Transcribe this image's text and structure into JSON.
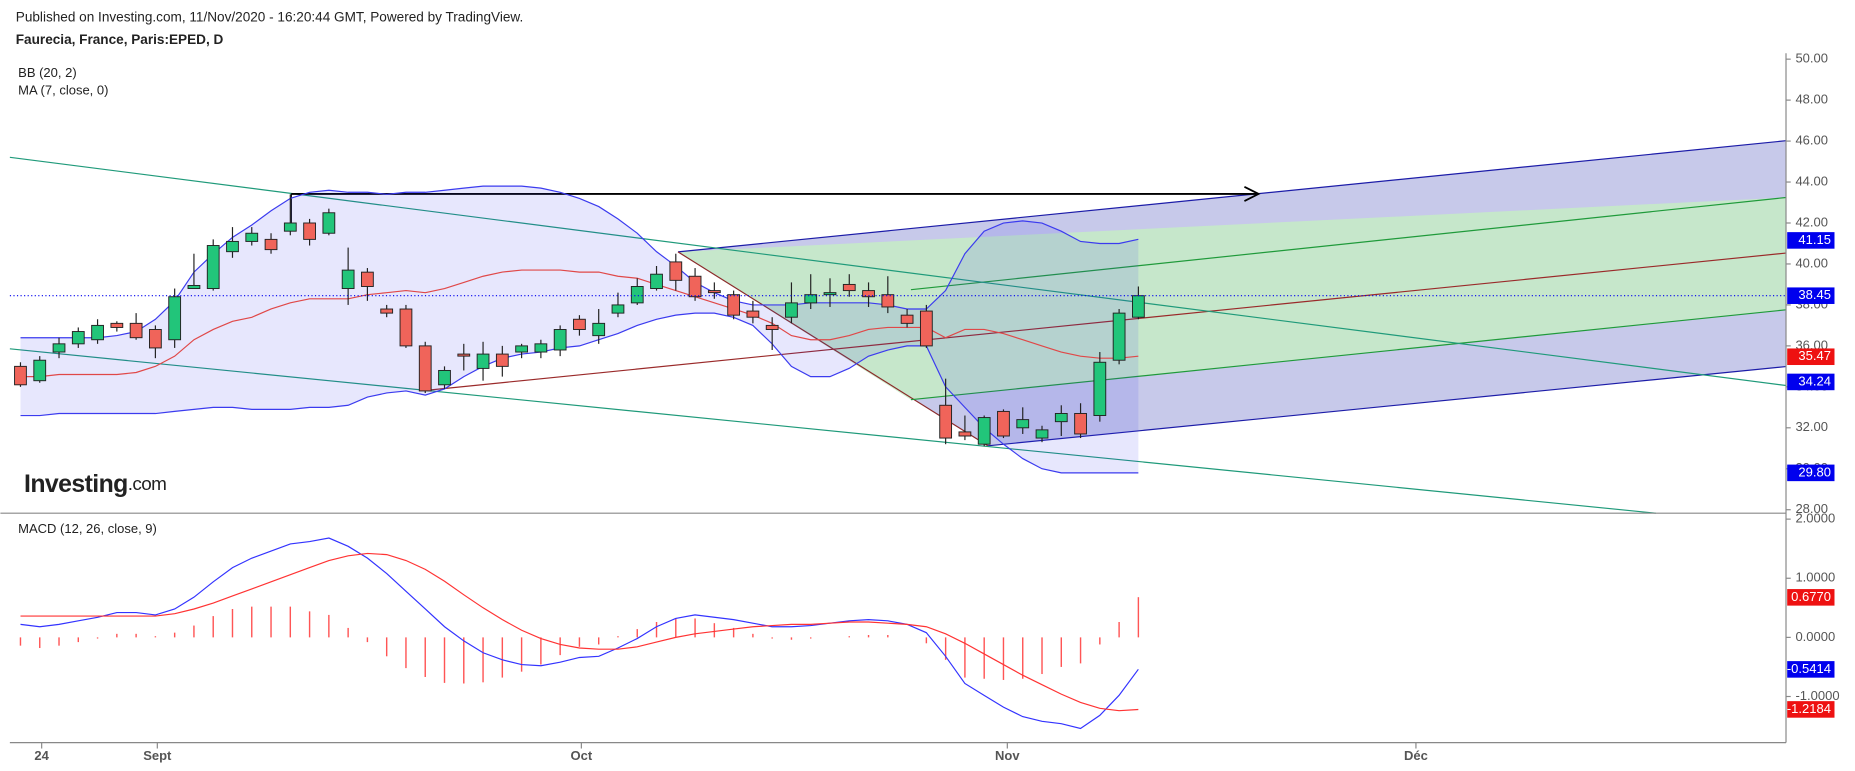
{
  "header": {
    "published": "Published on Investing.com, 11/Nov/2020 - 16:20:44 GMT, Powered by TradingView."
  },
  "watermark": [
    "Investing",
    ".com"
  ],
  "chart_data": [
    {
      "type": "candlestick",
      "title": "Faurecia, France, Paris:EPED, D",
      "xlim": [
        -0.55,
        91.6
      ],
      "xticks": [
        {
          "value": 1.1,
          "label": "24"
        },
        {
          "value": 7.1,
          "label": "Sept"
        },
        {
          "value": 29.1,
          "label": "Oct"
        },
        {
          "value": 51.2,
          "label": "Nov"
        },
        {
          "value": 72.4,
          "label": "Déc"
        }
      ],
      "ylim": [
        27.83,
        50.29
      ],
      "yticks": [
        {
          "value": 50,
          "label": "50.00"
        },
        {
          "value": 48,
          "label": "48.00"
        },
        {
          "value": 46,
          "label": "46.00"
        },
        {
          "value": 44,
          "label": "44.00"
        },
        {
          "value": 42,
          "label": "42.00"
        },
        {
          "value": 40,
          "label": "40.00"
        },
        {
          "value": 38,
          "label": "38.00"
        },
        {
          "value": 36,
          "label": "36.00"
        },
        {
          "value": 34,
          "label": "34.00"
        },
        {
          "value": 32,
          "label": "32.00"
        },
        {
          "value": 30,
          "label": "30.00"
        },
        {
          "value": 28,
          "label": "28.00"
        }
      ],
      "up_color": "#22c57a",
      "down_color": "#f0645a",
      "open": [
        35.0,
        34.3,
        35.7,
        36.1,
        36.3,
        37.1,
        37.1,
        36.8,
        36.3,
        38.8,
        38.8,
        40.6,
        41.1,
        41.2,
        41.6,
        42.0,
        41.5,
        38.8,
        39.6,
        37.8,
        37.8,
        36.0,
        34.1,
        35.6,
        34.9,
        35.6,
        35.7,
        35.7,
        35.8,
        37.3,
        36.5,
        37.6,
        38.1,
        38.8,
        40.1,
        39.4,
        38.7,
        38.5,
        37.7,
        37.0,
        37.4,
        38.1,
        38.5,
        39.0,
        38.7,
        38.5,
        37.5,
        37.7,
        33.1,
        31.8,
        31.2,
        32.8,
        32.0,
        31.5,
        32.3,
        32.7,
        32.6,
        35.3,
        37.4
      ],
      "high": [
        35.2,
        35.5,
        36.4,
        36.9,
        37.3,
        37.2,
        37.6,
        37.0,
        38.8,
        40.5,
        41.2,
        41.8,
        41.8,
        41.5,
        43.4,
        42.2,
        42.7,
        40.8,
        39.8,
        38.0,
        38.0,
        36.2,
        35.0,
        36.1,
        36.2,
        36.0,
        36.1,
        36.3,
        37.0,
        37.5,
        37.8,
        38.6,
        39.3,
        39.9,
        40.5,
        39.8,
        39.1,
        38.7,
        38.2,
        37.4,
        39.1,
        39.5,
        39.3,
        39.5,
        39.1,
        39.4,
        37.8,
        38.0,
        34.4,
        32.6,
        32.6,
        32.9,
        33.0,
        32.1,
        33.1,
        33.2,
        35.7,
        37.8,
        38.9
      ],
      "low": [
        34.0,
        34.2,
        35.4,
        35.9,
        36.1,
        36.7,
        36.3,
        35.4,
        35.9,
        38.8,
        38.7,
        40.3,
        40.9,
        40.5,
        41.4,
        40.9,
        41.4,
        38.0,
        38.2,
        37.4,
        35.9,
        33.7,
        33.9,
        34.8,
        34.3,
        34.5,
        35.4,
        35.4,
        35.5,
        36.5,
        36.1,
        37.4,
        38.0,
        38.7,
        38.7,
        38.2,
        38.3,
        37.3,
        37.1,
        35.8,
        37.1,
        37.8,
        37.9,
        38.4,
        37.9,
        37.6,
        36.9,
        35.9,
        31.2,
        31.4,
        31.1,
        31.5,
        31.7,
        31.3,
        31.6,
        31.5,
        32.3,
        35.1,
        37.3
      ],
      "close": [
        34.1,
        35.3,
        36.1,
        36.7,
        37.0,
        36.9,
        36.4,
        35.9,
        38.4,
        38.95,
        40.9,
        41.1,
        41.5,
        40.7,
        42.0,
        41.2,
        42.5,
        39.7,
        38.9,
        37.6,
        36.0,
        33.8,
        34.8,
        35.5,
        35.6,
        35.0,
        36.0,
        36.1,
        36.8,
        36.8,
        37.1,
        38.0,
        38.9,
        39.5,
        39.2,
        38.4,
        38.6,
        37.5,
        37.4,
        36.8,
        38.1,
        38.5,
        38.6,
        38.7,
        38.4,
        37.9,
        37.1,
        36.0,
        31.5,
        31.6,
        32.5,
        31.6,
        32.4,
        31.9,
        32.7,
        31.7,
        35.2,
        37.6,
        38.45
      ],
      "bands": {
        "name": "BB (20, 2)",
        "color": "#3b3bef",
        "basis_color": "#e04848",
        "upper": [
          36.4,
          36.4,
          36.4,
          36.4,
          36.4,
          36.5,
          36.7,
          37.3,
          38.2,
          39.6,
          40.5,
          41.3,
          41.9,
          42.6,
          43.2,
          43.5,
          43.6,
          43.5,
          43.5,
          43.4,
          43.5,
          43.5,
          43.6,
          43.7,
          43.8,
          43.8,
          43.8,
          43.7,
          43.5,
          43.2,
          42.8,
          42.2,
          41.5,
          40.6,
          39.9,
          39.1,
          38.6,
          38.2,
          38.0,
          38.0,
          38.0,
          38.1,
          38.1,
          38.1,
          38.1,
          38.0,
          37.8,
          37.8,
          38.7,
          40.5,
          41.6,
          42.0,
          42.1,
          42.0,
          41.6,
          41.1,
          41.0,
          41.0,
          41.2
        ],
        "lower": [
          32.6,
          32.6,
          32.7,
          32.7,
          32.7,
          32.7,
          32.7,
          32.7,
          32.8,
          32.9,
          33.0,
          33.0,
          32.9,
          32.9,
          32.9,
          33.0,
          33.0,
          33.1,
          33.5,
          33.7,
          33.8,
          33.6,
          33.9,
          34.5,
          35.0,
          35.4,
          35.6,
          35.7,
          35.9,
          36.0,
          36.3,
          36.6,
          37.0,
          37.3,
          37.5,
          37.6,
          37.6,
          37.4,
          37.0,
          36.1,
          35.0,
          34.5,
          34.5,
          34.9,
          35.5,
          35.8,
          36.0,
          36.0,
          34.0,
          33.0,
          32.0,
          31.2,
          30.5,
          30.0,
          29.8,
          29.8,
          29.8,
          29.8,
          29.8
        ],
        "basis": [
          34.5,
          34.5,
          34.6,
          34.6,
          34.6,
          34.6,
          34.7,
          35.0,
          35.5,
          36.3,
          36.8,
          37.2,
          37.4,
          37.8,
          38.1,
          38.3,
          38.3,
          38.3,
          38.5,
          38.6,
          38.7,
          38.6,
          38.8,
          39.1,
          39.4,
          39.6,
          39.7,
          39.7,
          39.7,
          39.6,
          39.6,
          39.4,
          39.3,
          39.0,
          38.7,
          38.4,
          38.1,
          37.8,
          37.5,
          37.1,
          36.5,
          36.3,
          36.3,
          36.5,
          36.8,
          36.9,
          36.9,
          36.9,
          36.4,
          36.8,
          36.8,
          36.6,
          36.3,
          36.0,
          35.7,
          35.5,
          35.4,
          35.4,
          35.5
        ]
      },
      "ma": {
        "name": "MA (7, close, 0)"
      },
      "badges": [
        {
          "value": 41.15,
          "label": "41.15",
          "color": "#0000ee"
        },
        {
          "value": 38.45,
          "label": "38.45",
          "color": "#0000ee",
          "dotted_line": true
        },
        {
          "value": 35.47,
          "label": "35.47",
          "color": "#ee1111"
        },
        {
          "value": 34.24,
          "label": "34.24",
          "color": "#0000ee"
        },
        {
          "value": 29.8,
          "label": "29.80",
          "color": "#0000ee"
        }
      ]
    },
    {
      "type": "macd",
      "title": "MACD (12, 26, close, 9)",
      "ylim": [
        -1.78,
        2.08
      ],
      "yticks": [
        {
          "value": 2,
          "label": "2.0000"
        },
        {
          "value": 1,
          "label": "1.0000"
        },
        {
          "value": 0,
          "label": "0.0000"
        },
        {
          "value": -1,
          "label": "-1.0000"
        }
      ],
      "macd": {
        "color": "#3333ff",
        "values": [
          0.22,
          0.18,
          0.22,
          0.28,
          0.34,
          0.42,
          0.42,
          0.38,
          0.48,
          0.68,
          0.94,
          1.18,
          1.34,
          1.46,
          1.58,
          1.62,
          1.68,
          1.54,
          1.34,
          1.08,
          0.78,
          0.48,
          0.18,
          -0.06,
          -0.26,
          -0.38,
          -0.46,
          -0.48,
          -0.42,
          -0.34,
          -0.32,
          -0.18,
          -0.02,
          0.18,
          0.32,
          0.38,
          0.34,
          0.3,
          0.24,
          0.18,
          0.18,
          0.2,
          0.24,
          0.28,
          0.3,
          0.28,
          0.22,
          0.08,
          -0.32,
          -0.78,
          -0.98,
          -1.18,
          -1.34,
          -1.42,
          -1.46,
          -1.54,
          -1.32,
          -0.98,
          -0.54
        ]
      },
      "signal": {
        "color": "#ff3333",
        "values": [
          0.36,
          0.36,
          0.36,
          0.36,
          0.36,
          0.36,
          0.36,
          0.36,
          0.4,
          0.48,
          0.58,
          0.7,
          0.82,
          0.94,
          1.06,
          1.18,
          1.3,
          1.38,
          1.42,
          1.4,
          1.3,
          1.15,
          0.95,
          0.72,
          0.5,
          0.3,
          0.12,
          -0.02,
          -0.12,
          -0.18,
          -0.2,
          -0.2,
          -0.16,
          -0.08,
          0.0,
          0.06,
          0.1,
          0.14,
          0.18,
          0.2,
          0.22,
          0.22,
          0.24,
          0.26,
          0.26,
          0.24,
          0.22,
          0.18,
          0.06,
          -0.1,
          -0.28,
          -0.46,
          -0.64,
          -0.8,
          -0.96,
          -1.1,
          -1.2,
          -1.24,
          -1.22
        ]
      },
      "histogram": {
        "color": "#ff5555",
        "values": [
          -0.14,
          -0.18,
          -0.14,
          -0.08,
          -0.02,
          0.06,
          0.06,
          0.02,
          0.08,
          0.2,
          0.36,
          0.48,
          0.52,
          0.52,
          0.52,
          0.44,
          0.38,
          0.16,
          -0.08,
          -0.32,
          -0.52,
          -0.67,
          -0.77,
          -0.78,
          -0.76,
          -0.68,
          -0.58,
          -0.46,
          -0.3,
          -0.16,
          -0.12,
          0.02,
          0.14,
          0.26,
          0.32,
          0.32,
          0.24,
          0.16,
          0.06,
          -0.02,
          -0.04,
          -0.02,
          0.0,
          0.02,
          0.04,
          0.04,
          0.0,
          -0.1,
          -0.38,
          -0.68,
          -0.7,
          -0.72,
          -0.7,
          -0.62,
          -0.5,
          -0.44,
          -0.12,
          0.26,
          0.68
        ]
      },
      "badges": [
        {
          "value": 0.677,
          "label": "0.6770",
          "color": "#ee1111"
        },
        {
          "value": -0.5414,
          "label": "-0.5414",
          "color": "#0000ee"
        },
        {
          "value": -1.2184,
          "label": "-1.2184",
          "color": "#ee1111"
        }
      ]
    }
  ]
}
